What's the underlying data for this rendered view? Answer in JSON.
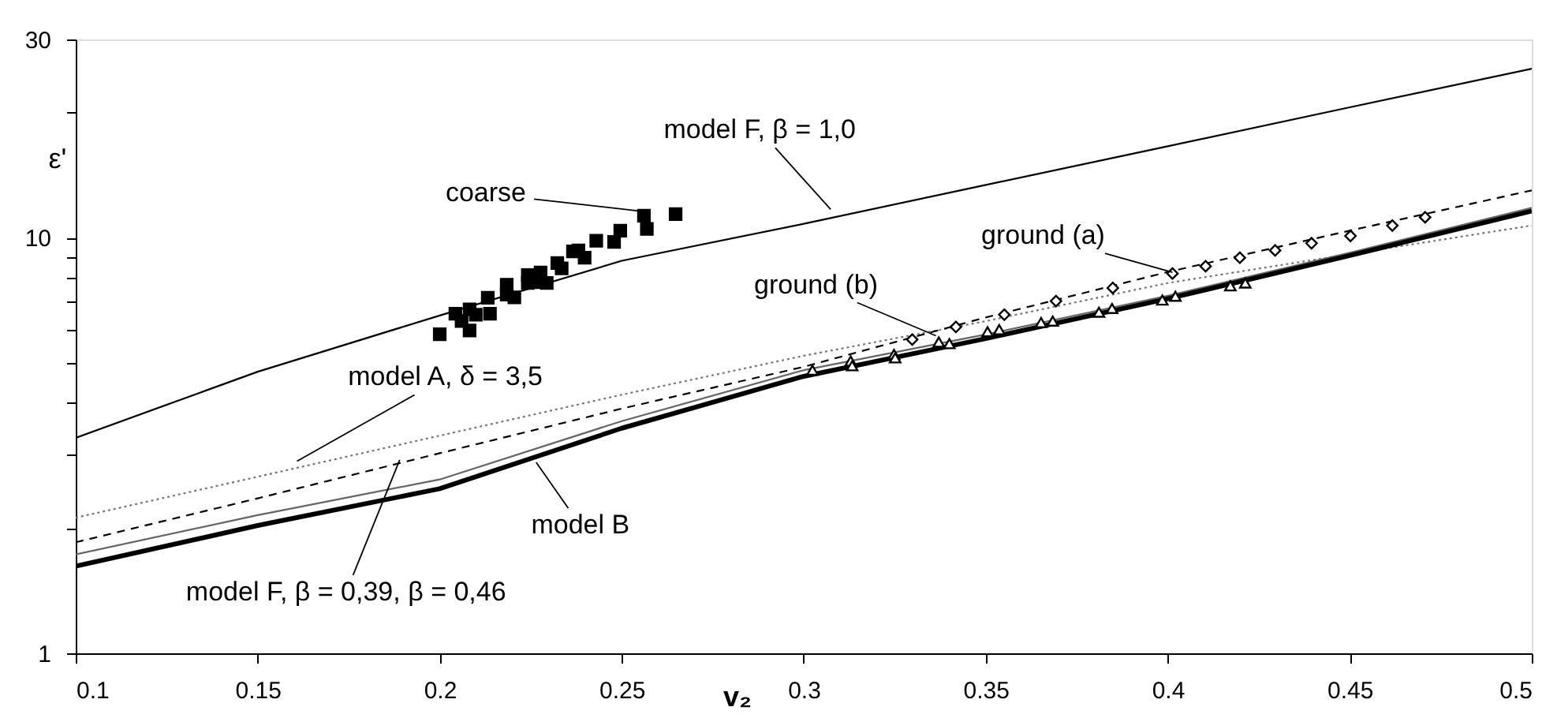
{
  "chart_data": {
    "type": "line",
    "xlabel": "v₂",
    "ylabel": "ε'",
    "log": "y",
    "xlim": [
      0.1,
      0.5
    ],
    "ylim": [
      1,
      30
    ],
    "xticks": [
      0.1,
      0.15,
      0.2,
      0.25,
      0.3,
      0.35,
      0.4,
      0.45,
      0.5
    ],
    "yticks": [
      1,
      {
        "value": 2,
        "label": null
      },
      {
        "value": 3,
        "label": null
      },
      {
        "value": 4,
        "label": null
      },
      {
        "value": 5,
        "label": null
      },
      {
        "value": 6,
        "label": null
      },
      {
        "value": 7,
        "label": null
      },
      {
        "value": 8,
        "label": null
      },
      {
        "value": 9,
        "label": null
      },
      10,
      {
        "value": 20,
        "label": null
      },
      30
    ],
    "grid": false,
    "series": [
      {
        "color": "#000000",
        "line_style": "solid",
        "marker": "none",
        "x": [
          0.1,
          0.15,
          0.2,
          0.25,
          0.3,
          0.35,
          0.4,
          0.45,
          0.5
        ],
        "values": [
          3.3,
          4.76,
          6.5,
          8.8,
          10.8,
          13.4,
          16.6,
          20.6,
          25.5
        ]
      },
      {
        "color": "#777777",
        "line_style": "dotted",
        "marker": "none",
        "x": [
          0.1,
          0.15,
          0.2,
          0.25,
          0.3,
          0.35,
          0.4,
          0.45,
          0.5
        ],
        "values": [
          2.12,
          2.66,
          3.34,
          4.19,
          5.2,
          6.3,
          7.78,
          9.13,
          10.7
        ]
      },
      {
        "color": "#000000",
        "line_style": "dashed",
        "marker": "none",
        "x": [
          0.1,
          0.15,
          0.2,
          0.25,
          0.3,
          0.35,
          0.4,
          0.45,
          0.5
        ],
        "values": [
          1.85,
          2.36,
          3.03,
          3.88,
          4.89,
          6.43,
          8.27,
          10.4,
          13.0
        ]
      },
      {
        "color": "#666666",
        "line_style": "solid",
        "marker": "none",
        "x": [
          0.1,
          0.15,
          0.2,
          0.25,
          0.3,
          0.35,
          0.4,
          0.45,
          0.5
        ],
        "values": [
          1.73,
          2.15,
          2.62,
          3.62,
          4.8,
          5.85,
          7.25,
          9.2,
          11.8
        ]
      },
      {
        "color": "#000000",
        "line_style": "solid",
        "marker": "none",
        "x": [
          0.1,
          0.15,
          0.2,
          0.25,
          0.3,
          0.35,
          0.4,
          0.45,
          0.5
        ],
        "values": [
          1.62,
          2.03,
          2.49,
          3.48,
          4.64,
          5.72,
          7.13,
          9.06,
          11.6
        ]
      },
      {
        "type": "scatter",
        "color": "#000000",
        "marker": "square",
        "x": [
          0.2,
          0.2043,
          0.206,
          0.2082,
          0.2082,
          0.2099,
          0.2132,
          0.2138,
          0.2184,
          0.2184,
          0.2205,
          0.2242,
          0.2242,
          0.2265,
          0.2277,
          0.2294,
          0.2323,
          0.2335,
          0.2366,
          0.2381,
          0.2398,
          0.243,
          0.2479,
          0.2496,
          0.2561,
          0.2569,
          0.2648
        ],
        "values": [
          5.86,
          6.56,
          6.3,
          5.98,
          6.72,
          6.53,
          7.17,
          6.56,
          7.71,
          7.3,
          7.19,
          8.13,
          7.78,
          7.82,
          8.25,
          7.78,
          8.69,
          8.44,
          9.27,
          9.32,
          8.95,
          9.83,
          9.77,
          10.4,
          11.3,
          10.5,
          11.4
        ]
      },
      {
        "type": "scatter",
        "color": "#000000",
        "marker": "diamond",
        "x": [
          0.3298,
          0.3418,
          0.3551,
          0.3693,
          0.3849,
          0.4013,
          0.4104,
          0.4198,
          0.4295,
          0.4395,
          0.4502,
          0.4617,
          0.4707
        ],
        "values": [
          5.69,
          6.1,
          6.53,
          7.04,
          7.57,
          8.2,
          8.54,
          8.95,
          9.32,
          9.7,
          10.1,
          10.7,
          11.2
        ]
      },
      {
        "type": "scatter",
        "color": "#000000",
        "marker": "triangle",
        "x": [
          0.3024,
          0.3129,
          0.3133,
          0.3248,
          0.3251,
          0.3371,
          0.34,
          0.3505,
          0.3537,
          0.3652,
          0.3684,
          0.3811,
          0.3847,
          0.3985,
          0.4021,
          0.4172,
          0.4213
        ],
        "values": [
          4.8,
          5.05,
          4.92,
          5.24,
          5.14,
          5.61,
          5.56,
          5.94,
          6.01,
          6.25,
          6.3,
          6.62,
          6.76,
          7.08,
          7.23,
          7.66,
          7.78
        ]
      }
    ],
    "annotations": [
      {
        "text": "model F,  β = 1,0",
        "x": 0.3074,
        "y": 11.7
      },
      {
        "text": "coarse",
        "x": 0.2547,
        "y": 11.6
      },
      {
        "text": "model A, δ = 3,5",
        "x": 0.1608,
        "y": 2.9
      },
      {
        "text": "model B",
        "x": 0.2265,
        "y": 2.88
      },
      {
        "text": "model F,  β = 0,39,  β = 0,46",
        "x": 0.189,
        "y": 2.92
      },
      {
        "text": "ground (a)",
        "x": 0.4013,
        "y": 8.26
      },
      {
        "text": "ground (b)",
        "x": 0.3363,
        "y": 5.81
      }
    ]
  }
}
